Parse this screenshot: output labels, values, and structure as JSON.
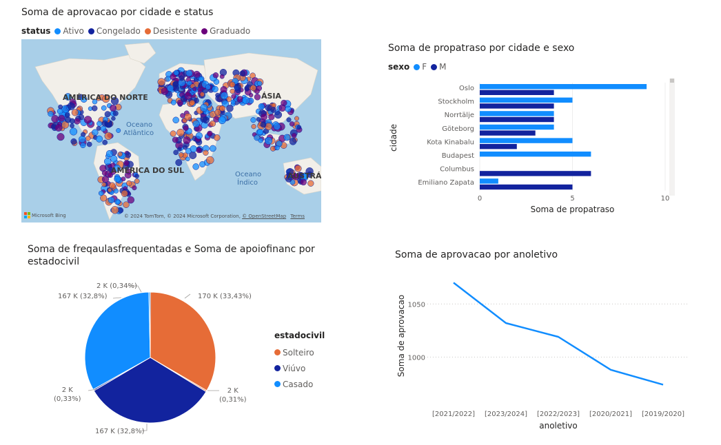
{
  "map_visual": {
    "title": "Soma de aprovacao por cidade e status",
    "legend_title": "status",
    "legend": [
      {
        "label": "Ativo",
        "color": "#118dff"
      },
      {
        "label": "Congelado",
        "color": "#12239e"
      },
      {
        "label": "Desistente",
        "color": "#e66c37"
      },
      {
        "label": "Graduado",
        "color": "#6b007b"
      }
    ],
    "labels": {
      "north_america": "AMÉRICA DO NORTE",
      "south_america": "AMÉRICA DO SUL",
      "asia": "ÁSIA",
      "australia": "AUSTRÁL",
      "atlantic": "Oceano\nAtlântico",
      "indian": "Oceano\nÍndico"
    },
    "bing_logo": "Microsoft Bing",
    "attribution": "© 2024 TomTom, © 2024 Microsoft Corporation,",
    "osm_link": "© OpenStreetMap",
    "terms_link": "Terms"
  },
  "chart_data": [
    {
      "type": "bar",
      "orientation": "horizontal",
      "title": "Soma de propatraso por cidade e sexo",
      "legend_title": "sexo",
      "xlabel": "Soma de propatraso",
      "ylabel": "cidade",
      "categories": [
        "Oslo",
        "Stockholm",
        "Norrtälje",
        "Göteborg",
        "Kota Kinabalu",
        "Budapest",
        "Columbus",
        "Emiliano Zapata"
      ],
      "series": [
        {
          "name": "F",
          "color": "#118dff",
          "values": [
            9,
            5,
            4,
            4,
            5,
            6,
            0,
            1
          ]
        },
        {
          "name": "M",
          "color": "#12239e",
          "values": [
            4,
            4,
            4,
            3,
            2,
            0,
            6,
            5
          ]
        }
      ],
      "xlim": [
        0,
        10
      ],
      "xticks": [
        "0",
        "5",
        "10"
      ],
      "grid": true
    },
    {
      "type": "pie",
      "title": "Soma de freqaulasfrequentadas e Soma de apoiofinanc por estadocivil",
      "legend_title": "estadocivil",
      "legend": [
        {
          "label": "Solteiro",
          "color": "#e66c37"
        },
        {
          "label": "Viúvo",
          "color": "#12239e"
        },
        {
          "label": "Casado",
          "color": "#118dff"
        }
      ],
      "slices": [
        {
          "label": "170 K (33,43%)",
          "percent": 33.43,
          "color": "#e66c37"
        },
        {
          "label": "2 K\n(0,31%)",
          "percent": 0.31,
          "color": "#e66c37"
        },
        {
          "label": "167 K (32,8%)",
          "percent": 32.8,
          "color": "#12239e"
        },
        {
          "label": "2 K\n(0,33%)",
          "percent": 0.33,
          "color": "#12239e"
        },
        {
          "label": "167 K (32,8%)",
          "percent": 32.8,
          "color": "#118dff"
        },
        {
          "label": "2 K (0,34%)",
          "percent": 0.34,
          "color": "#118dff"
        }
      ]
    },
    {
      "type": "line",
      "title": "Soma de aprovacao por anoletivo",
      "xlabel": "anoletivo",
      "ylabel": "Soma de aprovacao",
      "categories": [
        "[2021/2022]",
        "[2023/2024]",
        "[2022/2023]",
        "[2020/2021]",
        "[2019/2020]"
      ],
      "series": [
        {
          "color": "#118dff",
          "values": [
            1070,
            1032,
            1019,
            988,
            974
          ]
        }
      ],
      "ylim": [
        960,
        1080
      ],
      "yticks": [
        1000,
        1050
      ],
      "grid": true
    }
  ]
}
